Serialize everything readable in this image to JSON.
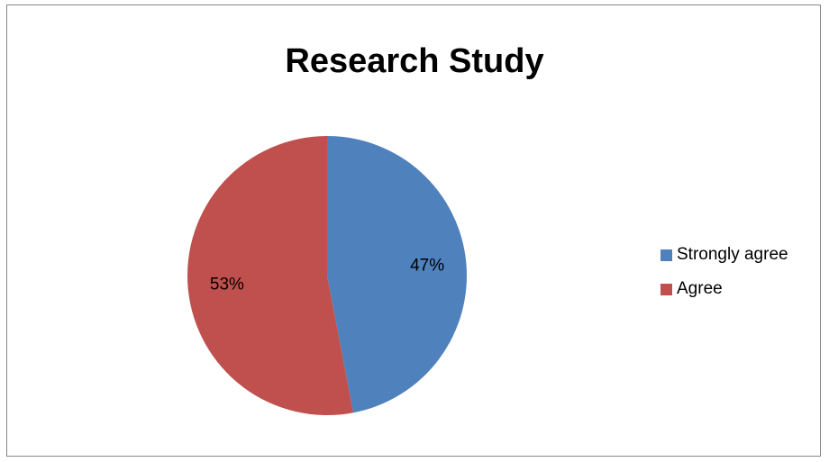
{
  "chart_data": {
    "type": "pie",
    "title": "Research Study",
    "categories": [
      "Strongly agree",
      "Agree"
    ],
    "values": [
      47,
      53
    ],
    "data_labels": [
      "47%",
      "53%"
    ],
    "colors": [
      "#4F81BD",
      "#C0504D"
    ],
    "legend_position": "right"
  }
}
